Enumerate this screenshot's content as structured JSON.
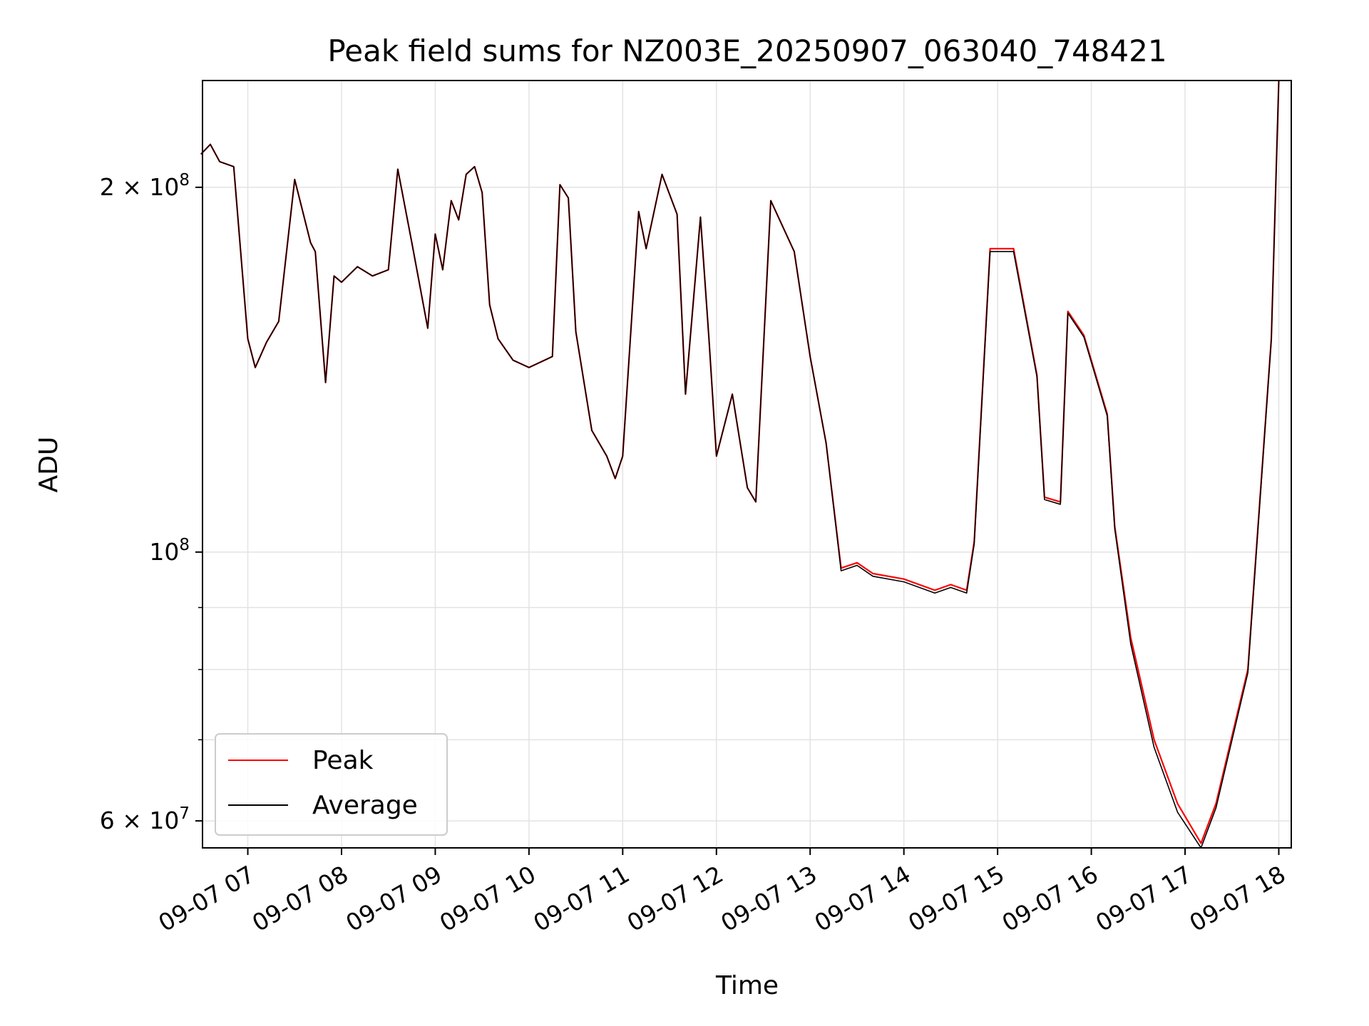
{
  "chart_data": {
    "type": "line",
    "title": "Peak field sums for NZ003E_20250907_063040_748421",
    "xlabel": "Time",
    "ylabel": "ADU",
    "yscale": "log",
    "ylim": [
      57000000,
      245000000
    ],
    "xlim": [
      "09-07 06:31",
      "09-07 18:08"
    ],
    "grid": true,
    "legend": "lower-left",
    "x_ticks": [
      "09-07 07",
      "09-07 08",
      "09-07 09",
      "09-07 10",
      "09-07 11",
      "09-07 12",
      "09-07 13",
      "09-07 14",
      "09-07 15",
      "09-07 16",
      "09-07 17",
      "09-07 18"
    ],
    "y_ticks": [
      {
        "value": 200000000,
        "base": "2 × 10",
        "exp": "8"
      },
      {
        "value": 100000000,
        "base": "10",
        "exp": "8"
      },
      {
        "value": 60000000,
        "base": "6 × 10",
        "exp": "7"
      }
    ],
    "y_minor_ticks": [
      70000000,
      80000000,
      90000000
    ],
    "x_hours": [
      6.5,
      6.6,
      6.7,
      6.85,
      7.0,
      7.08,
      7.2,
      7.33,
      7.5,
      7.67,
      7.72,
      7.83,
      7.92,
      8.0,
      8.17,
      8.33,
      8.5,
      8.6,
      8.75,
      8.92,
      9.0,
      9.08,
      9.17,
      9.25,
      9.33,
      9.42,
      9.5,
      9.58,
      9.67,
      9.83,
      10.0,
      10.25,
      10.33,
      10.42,
      10.5,
      10.67,
      10.83,
      10.92,
      11.0,
      11.17,
      11.25,
      11.42,
      11.58,
      11.67,
      11.83,
      11.92,
      12.0,
      12.17,
      12.33,
      12.42,
      12.58,
      12.83,
      13.0,
      13.17,
      13.33,
      13.5,
      13.67,
      14.0,
      14.33,
      14.5,
      14.67,
      14.75,
      14.92,
      15.17,
      15.42,
      15.5,
      15.67,
      15.75,
      15.92,
      16.17,
      16.25,
      16.42,
      16.67,
      16.92,
      17.17,
      17.33,
      17.67,
      17.92,
      18.0
    ],
    "series": [
      {
        "name": "Peak",
        "color": "#ff0000",
        "values": [
          213000000,
          217000000,
          210000000,
          208000000,
          150000000,
          142000000,
          149000000,
          155000000,
          203000000,
          180000000,
          177000000,
          138000000,
          169000000,
          167000000,
          172000000,
          169000000,
          171000000,
          207000000,
          180000000,
          153000000,
          183000000,
          171000000,
          195000000,
          188000000,
          205000000,
          208000000,
          198000000,
          160000000,
          150000000,
          144000000,
          142000000,
          145000000,
          201000000,
          196000000,
          152000000,
          126000000,
          120000000,
          115000000,
          120000000,
          191000000,
          178000000,
          205000000,
          190000000,
          135000000,
          189000000,
          150000000,
          120000000,
          135000000,
          113000000,
          110000000,
          195000000,
          177000000,
          145000000,
          123000000,
          97000000,
          98000000,
          96000000,
          95000000,
          93000000,
          94000000,
          93000000,
          102000000,
          178000000,
          178000000,
          140000000,
          111000000,
          110000000,
          158000000,
          151000000,
          130000000,
          105000000,
          85000000,
          70000000,
          62000000,
          57500000,
          62000000,
          80000000,
          150000000,
          245000000
        ]
      },
      {
        "name": "Average",
        "color": "#000000",
        "values": [
          213000000,
          217000000,
          210000000,
          208000000,
          150000000,
          142000000,
          149000000,
          155000000,
          203000000,
          180000000,
          177000000,
          138000000,
          169000000,
          167000000,
          172000000,
          169000000,
          171000000,
          207000000,
          180000000,
          153000000,
          183000000,
          171000000,
          195000000,
          188000000,
          205000000,
          208000000,
          198000000,
          160000000,
          150000000,
          144000000,
          142000000,
          145000000,
          201000000,
          196000000,
          152000000,
          126000000,
          120000000,
          115000000,
          120000000,
          191000000,
          178000000,
          205000000,
          190000000,
          135000000,
          189000000,
          150000000,
          120000000,
          135000000,
          113000000,
          110000000,
          195000000,
          177000000,
          145000000,
          123000000,
          96500000,
          97500000,
          95500000,
          94500000,
          92500000,
          93500000,
          92500000,
          101500000,
          177000000,
          177000000,
          139500000,
          110500000,
          109500000,
          157500000,
          150500000,
          129500000,
          104500000,
          84000000,
          69000000,
          61000000,
          57000000,
          61500000,
          79500000,
          149500000,
          245000000
        ]
      }
    ]
  }
}
